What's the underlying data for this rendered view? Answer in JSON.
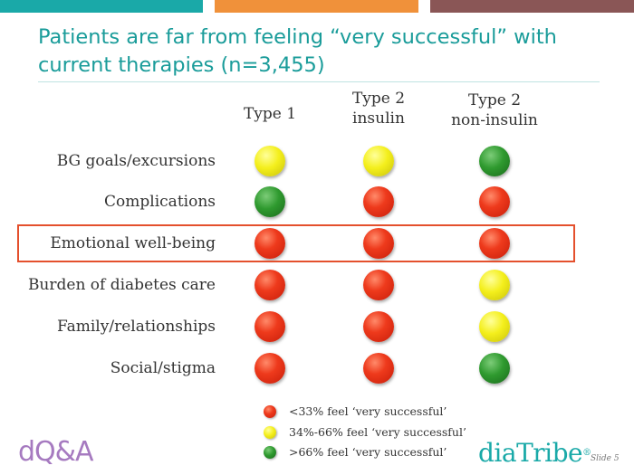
{
  "title": "Patients are far from feeling “very successful” with current therapies (n=3,455)",
  "columns": [
    "Type 1",
    "Type 2\ninsulin",
    "Type 2\nnon-insulin"
  ],
  "rows": [
    {
      "label": "BG goals/excursions",
      "ratings": [
        "yellow",
        "yellow",
        "green"
      ]
    },
    {
      "label": "Complications",
      "ratings": [
        "green",
        "red",
        "red"
      ]
    },
    {
      "label": "Emotional well-being",
      "ratings": [
        "red",
        "red",
        "red"
      ],
      "highlighted": true
    },
    {
      "label": "Burden of diabetes care",
      "ratings": [
        "red",
        "red",
        "yellow"
      ]
    },
    {
      "label": "Family/relationships",
      "ratings": [
        "red",
        "red",
        "yellow"
      ]
    },
    {
      "label": "Social/stigma",
      "ratings": [
        "red",
        "red",
        "green"
      ]
    }
  ],
  "legend": [
    {
      "color": "red",
      "text": "<33%  feel ‘very successful’"
    },
    {
      "color": "yellow",
      "text": "34%-66%  feel ‘very successful’"
    },
    {
      "color": "green",
      "text": ">66%  feel ‘very successful’"
    }
  ],
  "logos": {
    "left": "dQ&A",
    "right": "diaTribe",
    "right_mark": "®"
  },
  "slide_number": "Slide 5",
  "colors": {
    "teal": "#1aa9a8",
    "orange": "#f0913a",
    "brown": "#8a5656",
    "highlight_border": "#e4502d",
    "red": "#ee3a1c",
    "yellow": "#f4ef1c",
    "green": "#2f9a2f"
  }
}
